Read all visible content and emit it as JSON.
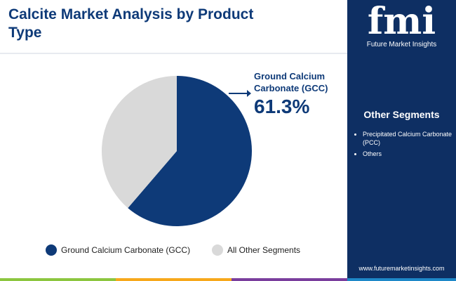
{
  "chart_data": {
    "type": "pie",
    "title": "Calcite Market Analysis by Product Type",
    "categories": [
      "Ground Calcium Carbonate (GCC)",
      "All Other Segments"
    ],
    "values": [
      61.3,
      38.7
    ],
    "value_labels": [
      "61.3%",
      null
    ],
    "colors": [
      "#0e3a78",
      "#d9d9d9"
    ],
    "legend": "bottom"
  },
  "sidebar": {
    "logo": "fmi",
    "brand": "Future Market Insights",
    "heading": "Other Segments",
    "items": [
      "Precipitated Calcium Carbonate (PCC)",
      "Others"
    ],
    "website": "www.futuremarketinsights.com"
  }
}
